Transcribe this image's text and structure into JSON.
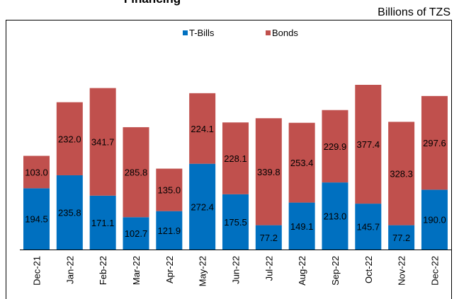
{
  "chart_data": {
    "type": "stacked_bar",
    "title": "Financing",
    "unit_label": "Billions of TZS",
    "categories": [
      "Dec-21",
      "Jan-22",
      "Feb-22",
      "Mar-22",
      "Apr-22",
      "May-22",
      "Jun-22",
      "Jul-22",
      "Aug-22",
      "Sep-22",
      "Oct-22",
      "Nov-22",
      "Dec-22"
    ],
    "series": [
      {
        "name": "T-Bills",
        "color": "#0070c0",
        "values": [
          194.5,
          235.8,
          171.1,
          102.7,
          121.9,
          272.4,
          175.5,
          77.2,
          149.1,
          213.0,
          145.7,
          77.2,
          190.0
        ],
        "value_labels": [
          "194.5",
          "235.8",
          "171.1",
          "102.7",
          "121.9",
          "272.4",
          "175.5",
          "77.2",
          "149.1",
          "213.0",
          "145.7",
          "77.2",
          "190.0"
        ]
      },
      {
        "name": "Bonds",
        "color": "#c0504d",
        "values": [
          103.0,
          232.0,
          341.7,
          285.8,
          135.0,
          224.1,
          228.1,
          339.8,
          253.4,
          229.9,
          377.4,
          328.3,
          297.6
        ],
        "value_labels": [
          "103.0",
          "232.0",
          "341.7",
          "285.8",
          "135.0",
          "224.1",
          "228.1",
          "339.8",
          "253.4",
          "229.9",
          "377.4",
          "328.3",
          "297.6"
        ]
      }
    ]
  }
}
